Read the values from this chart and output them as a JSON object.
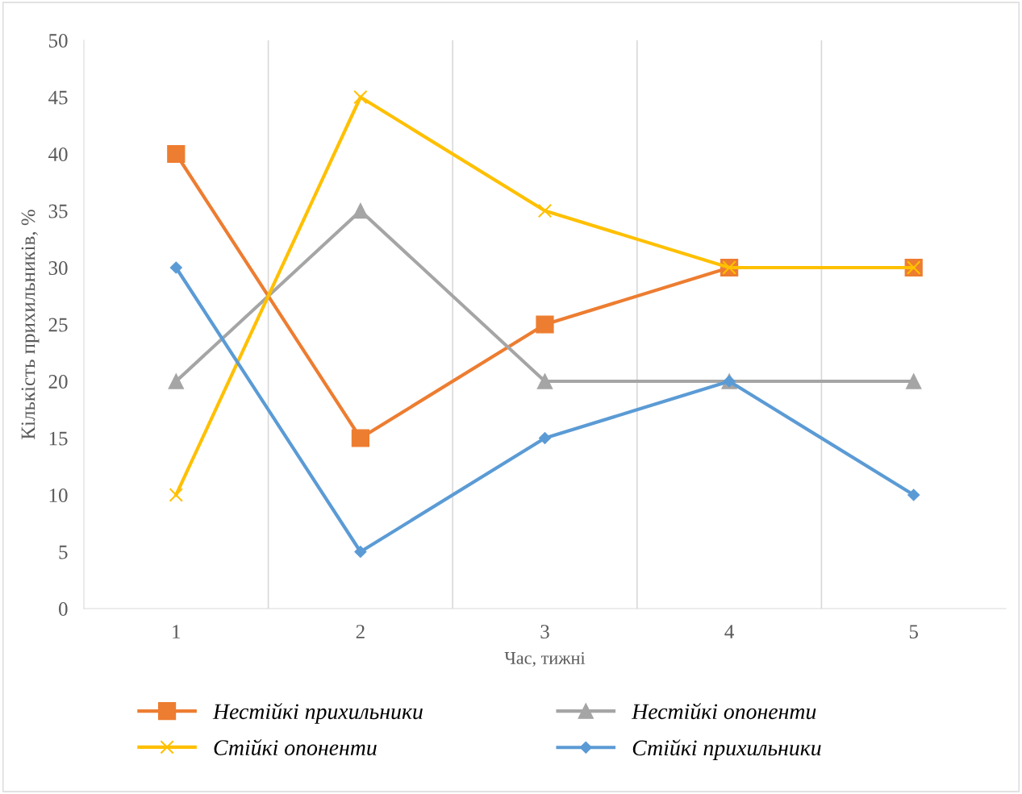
{
  "chart_data": {
    "type": "line",
    "xlabel": "Час, тижні",
    "ylabel": "Кількість прихильників, %",
    "categories": [
      "1",
      "2",
      "3",
      "4",
      "5"
    ],
    "series": [
      {
        "name": "Нестійкі прихильники",
        "color": "#ed7d31",
        "marker": "square",
        "values": [
          40,
          15,
          25,
          30,
          30
        ]
      },
      {
        "name": "Нестійкі опоненти",
        "color": "#a5a5a5",
        "marker": "triangle",
        "values": [
          20,
          35,
          20,
          20,
          20
        ]
      },
      {
        "name": "Стійкі опоненти",
        "color": "#ffc000",
        "marker": "cross",
        "values": [
          10,
          45,
          35,
          30,
          30
        ]
      },
      {
        "name": "Стійкі прихильники",
        "color": "#5b9bd5",
        "marker": "diamond",
        "values": [
          30,
          5,
          15,
          20,
          10
        ]
      }
    ],
    "ylim": [
      0,
      50
    ],
    "yticks": [
      0,
      5,
      10,
      15,
      20,
      25,
      30,
      35,
      40,
      45,
      50
    ],
    "grid": "x",
    "legend": "bottom",
    "line_style": "solid"
  }
}
